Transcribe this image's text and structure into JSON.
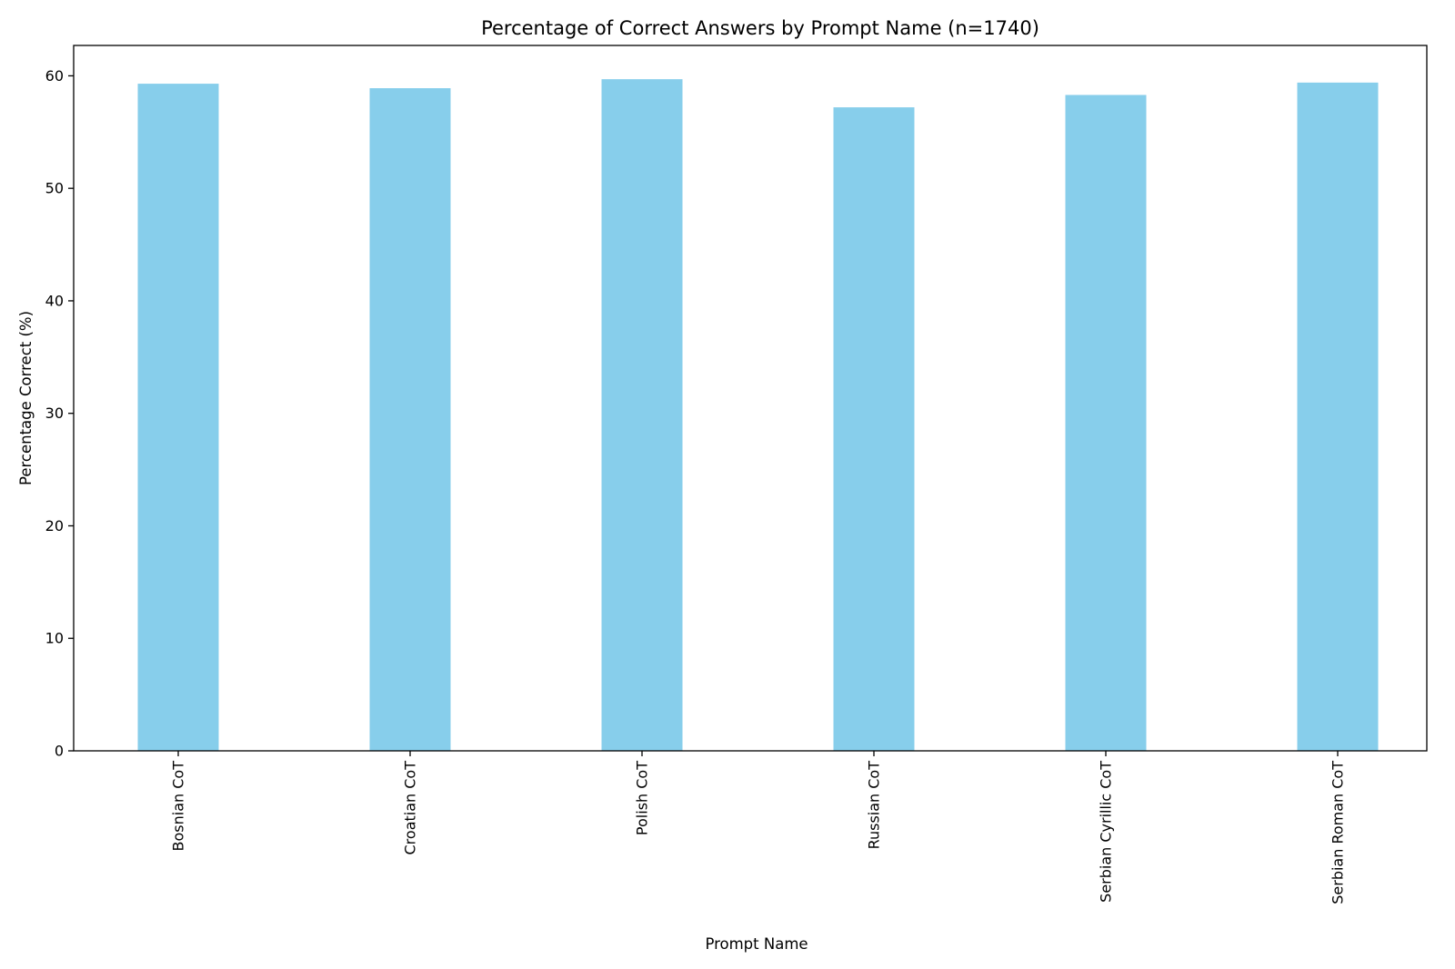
{
  "chart_data": {
    "type": "bar",
    "title": "Percentage of Correct Answers by Prompt Name (n=1740)",
    "xlabel": "Prompt Name",
    "ylabel": "Percentage Correct (%)",
    "categories": [
      "Bosnian CoT",
      "Croatian CoT",
      "Polish CoT",
      "Russian CoT",
      "Serbian Cyrillic CoT",
      "Serbian Roman CoT"
    ],
    "values": [
      59.3,
      58.9,
      59.7,
      57.2,
      58.3,
      59.4
    ],
    "ylim": [
      0,
      62.7
    ],
    "yticks": [
      0,
      10,
      20,
      30,
      40,
      50,
      60
    ],
    "grid": false,
    "legend": "none",
    "bar_color": "#87CEEB"
  }
}
